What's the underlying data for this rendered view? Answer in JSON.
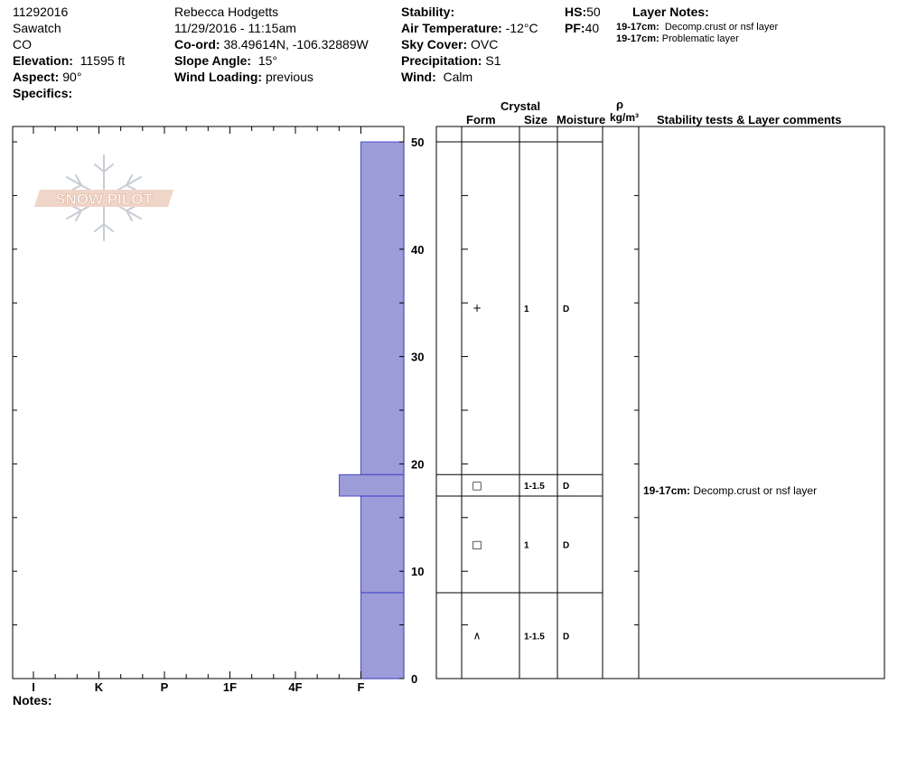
{
  "header": {
    "date_id": "11292016",
    "range": "Sawatch",
    "state": "CO",
    "elevation_label": "Elevation:",
    "elevation_value": "11595 ft",
    "aspect_label": "Aspect:",
    "aspect_value": "90°",
    "specifics_label": "Specifics:",
    "observer": "Rebecca Hodgetts",
    "datetime": "11/29/2016 - 11:15am",
    "coord_label": "Co-ord:",
    "coord_value": "38.49614N, -106.32889W",
    "slope_label": "Slope Angle:",
    "slope_value": "15°",
    "wind_loading_label": "Wind Loading:",
    "wind_loading_value": "previous",
    "stability_label": "Stability:",
    "air_temp_label": "Air Temperature:",
    "air_temp_value": "-12°C",
    "sky_label": "Sky Cover:",
    "sky_value": "OVC",
    "precip_label": "Precipitation:",
    "precip_value": "S1",
    "wind_label": "Wind:",
    "wind_value": "Calm",
    "hs_label": "HS:",
    "hs_value": "50",
    "pf_label": "PF:",
    "pf_value": "40",
    "layer_notes_label": "Layer Notes:",
    "layer_notes": [
      {
        "depth": "19-17cm:",
        "text": "Decomp.crust or nsf layer"
      },
      {
        "depth": "19-17cm:",
        "text": "Problematic layer"
      }
    ]
  },
  "logo_text": "SNOW PILOT",
  "table_headers": {
    "crystal": "Crystal",
    "form": "Form",
    "size": "Size",
    "moisture": "Moisture",
    "rho": "ρ",
    "density_unit": "kg/m³",
    "stability": "Stability tests & Layer comments"
  },
  "notes_label": "Notes:",
  "chart_data": {
    "type": "snow-profile",
    "y_axis": {
      "label": "",
      "unit": "cm",
      "range": [
        0,
        50
      ],
      "ticks": [
        0,
        10,
        20,
        30,
        40,
        50
      ]
    },
    "x_axis": {
      "label": "",
      "hardness_categories": [
        "I",
        "K",
        "P",
        "1F",
        "4F",
        "F"
      ],
      "direction": "decreasing-right"
    },
    "bar_color": "#9c9cd8",
    "layers": [
      {
        "top": 50,
        "bottom": 19,
        "hardness": "F",
        "form": "+",
        "size": "1",
        "moisture": "D"
      },
      {
        "top": 19,
        "bottom": 17,
        "hardness": "F+",
        "form": "□",
        "size": "1-1.5",
        "moisture": "D"
      },
      {
        "top": 17,
        "bottom": 8,
        "hardness": "F",
        "form": "□",
        "size": "1",
        "moisture": "D"
      },
      {
        "top": 8,
        "bottom": 0,
        "hardness": "F",
        "form": "^",
        "size": "1-1.5",
        "moisture": "D"
      }
    ],
    "comments": [
      {
        "depth": "19-17cm:",
        "text": "Decomp.crust or nsf layer"
      }
    ]
  }
}
